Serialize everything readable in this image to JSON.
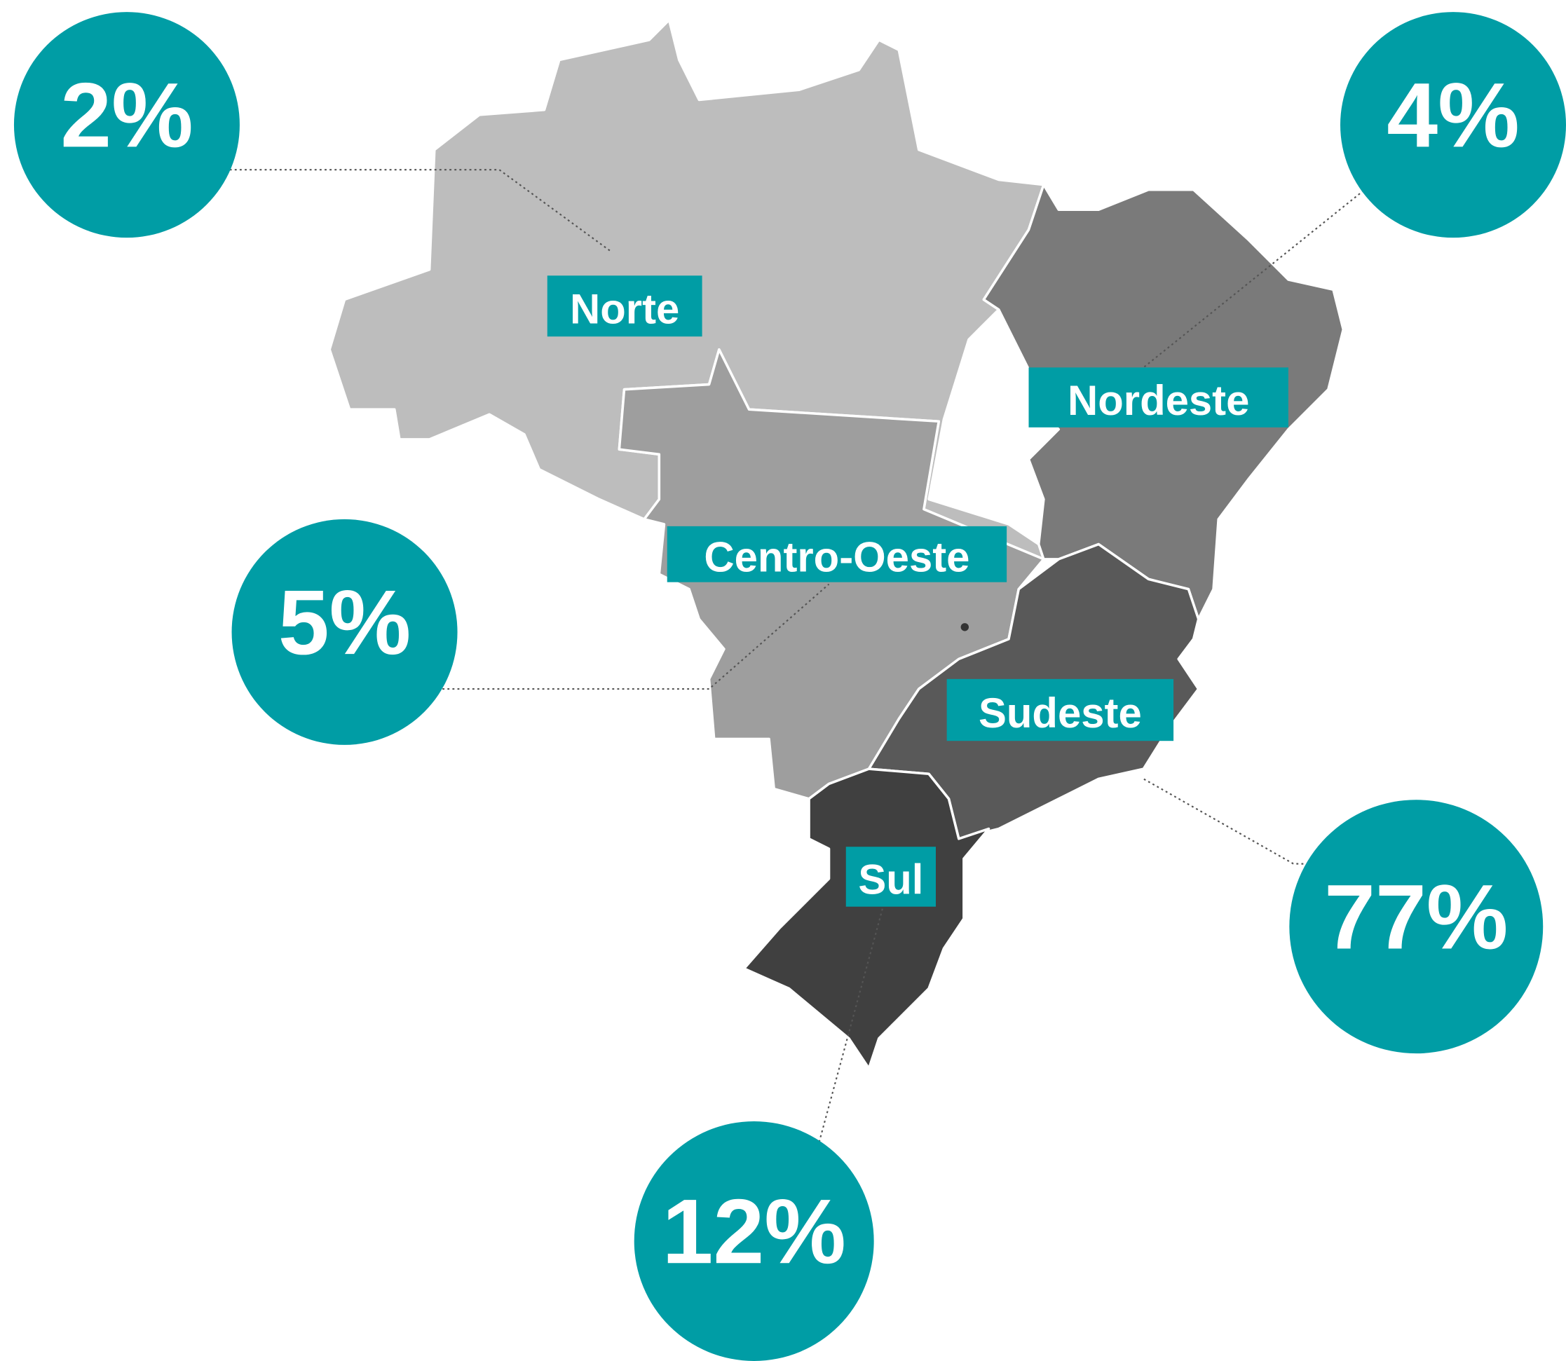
{
  "regions": [
    {
      "name": "Norte",
      "value": 2,
      "value_label": "2%"
    },
    {
      "name": "Nordeste",
      "value": 4,
      "value_label": "4%"
    },
    {
      "name": "Centro-Oeste",
      "value": 5,
      "value_label": "5%"
    },
    {
      "name": "Sudeste",
      "value": 77,
      "value_label": "77%"
    },
    {
      "name": "Sul",
      "value": 12,
      "value_label": "12%"
    }
  ]
}
